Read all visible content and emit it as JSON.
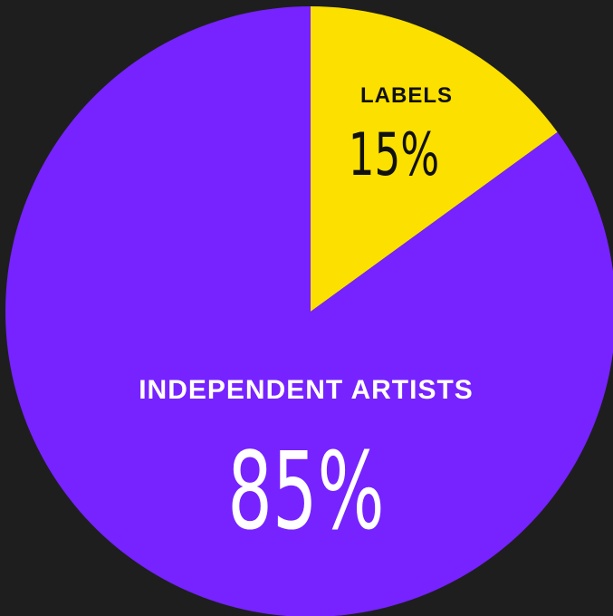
{
  "chart_data": {
    "type": "pie",
    "title": "",
    "slices": [
      {
        "label": "LABELS",
        "value": 15,
        "value_label": "15%",
        "color": "#fbe000",
        "text_color": "#111111"
      },
      {
        "label": "INDEPENDENT ARTISTS",
        "value": 85,
        "value_label": "85%",
        "color": "#7623ff",
        "text_color": "#ffffff"
      }
    ],
    "start_angle_deg": 0,
    "direction": "clockwise",
    "legend": "none"
  },
  "colors": {
    "background": "#1e1e1e"
  }
}
